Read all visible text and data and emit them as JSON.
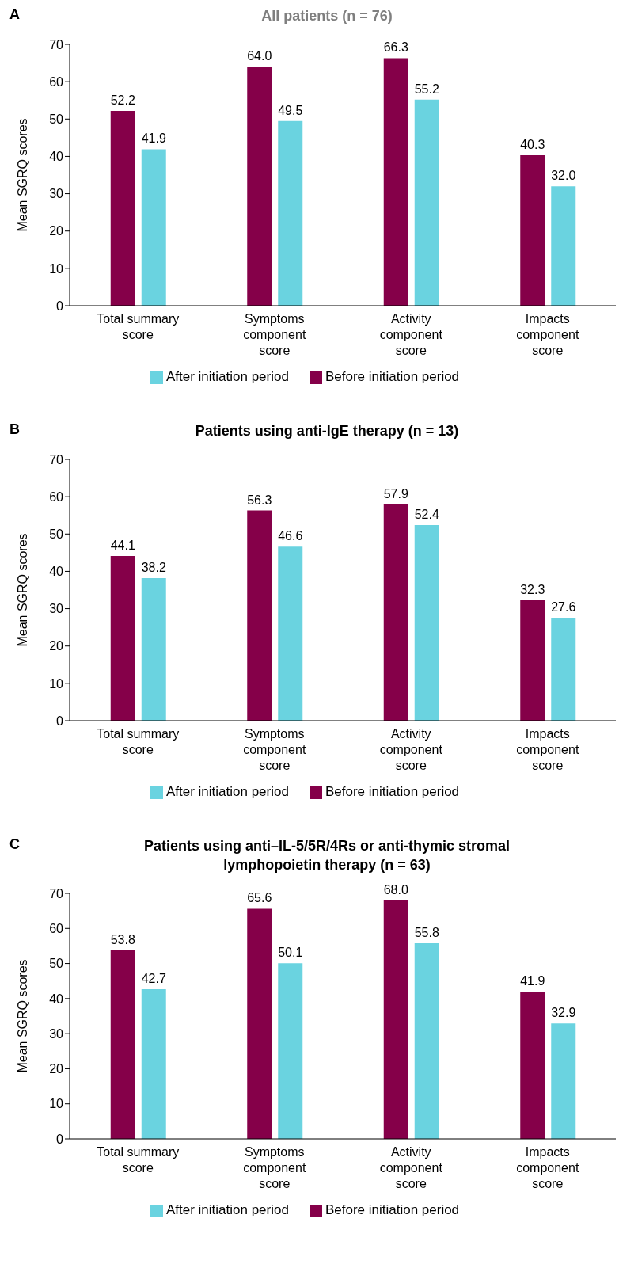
{
  "chart_data": [
    {
      "type": "bar",
      "title": "All patients (n = 76)",
      "annotations": [
        "A"
      ],
      "ylabel": "Mean SGRQ scores",
      "categories": [
        "Total summary score",
        "Symptoms component score",
        "Activity component score",
        "Impacts component score"
      ],
      "series": [
        {
          "name": "Before initiation period",
          "color": "#850049",
          "values": [
            52.2,
            64.0,
            66.3,
            40.3
          ],
          "value_labels": [
            "52.2",
            "64.0",
            "66.3",
            "40.3"
          ]
        },
        {
          "name": "After initiation period",
          "color": "#6ad3e0",
          "values": [
            41.9,
            49.5,
            55.2,
            32.0
          ],
          "value_labels": [
            "41.9",
            "49.5",
            "55.2",
            "32.0"
          ]
        }
      ],
      "ylim": [
        0,
        70
      ],
      "yticks": [
        0,
        10,
        20,
        30,
        40,
        50,
        60,
        70
      ],
      "grid": false,
      "legend": "bottom"
    },
    {
      "type": "bar",
      "title": "Patients using anti-IgE therapy (n = 13)",
      "annotations": [
        "B"
      ],
      "ylabel": "Mean SGRQ scores",
      "categories": [
        "Total summary score",
        "Symptoms component score",
        "Activity component score",
        "Impacts component score"
      ],
      "series": [
        {
          "name": "Before initiation period",
          "color": "#850049",
          "values": [
            44.1,
            56.3,
            57.9,
            32.3
          ],
          "value_labels": [
            "44.1",
            "56.3",
            "57.9",
            "32.3"
          ]
        },
        {
          "name": "After initiation period",
          "color": "#6ad3e0",
          "values": [
            38.2,
            46.6,
            52.4,
            27.6
          ],
          "value_labels": [
            "38.2",
            "46.6",
            "52.4",
            "27.6"
          ]
        }
      ],
      "ylim": [
        0,
        70
      ],
      "yticks": [
        0,
        10,
        20,
        30,
        40,
        50,
        60,
        70
      ],
      "grid": false,
      "legend": "bottom"
    },
    {
      "type": "bar",
      "title": "Patients using anti–IL-5/5R/4Rs or anti-thymic stromal lymphopoietin therapy (n = 63)",
      "annotations": [
        "C"
      ],
      "ylabel": "Mean SGRQ scores",
      "categories": [
        "Total summary score",
        "Symptoms component score",
        "Activity component score",
        "Impacts component score"
      ],
      "series": [
        {
          "name": "Before initiation period",
          "color": "#850049",
          "values": [
            53.8,
            65.6,
            68.0,
            41.9
          ],
          "value_labels": [
            "53.8",
            "65.6",
            "68.0",
            "41.9"
          ]
        },
        {
          "name": "After initiation period",
          "color": "#6ad3e0",
          "values": [
            42.7,
            50.1,
            55.8,
            32.9
          ],
          "value_labels": [
            "42.7",
            "50.1",
            "55.8",
            "32.9"
          ]
        }
      ],
      "ylim": [
        0,
        70
      ],
      "yticks": [
        0,
        10,
        20,
        30,
        40,
        50,
        60,
        70
      ],
      "grid": false,
      "legend": "bottom"
    }
  ]
}
